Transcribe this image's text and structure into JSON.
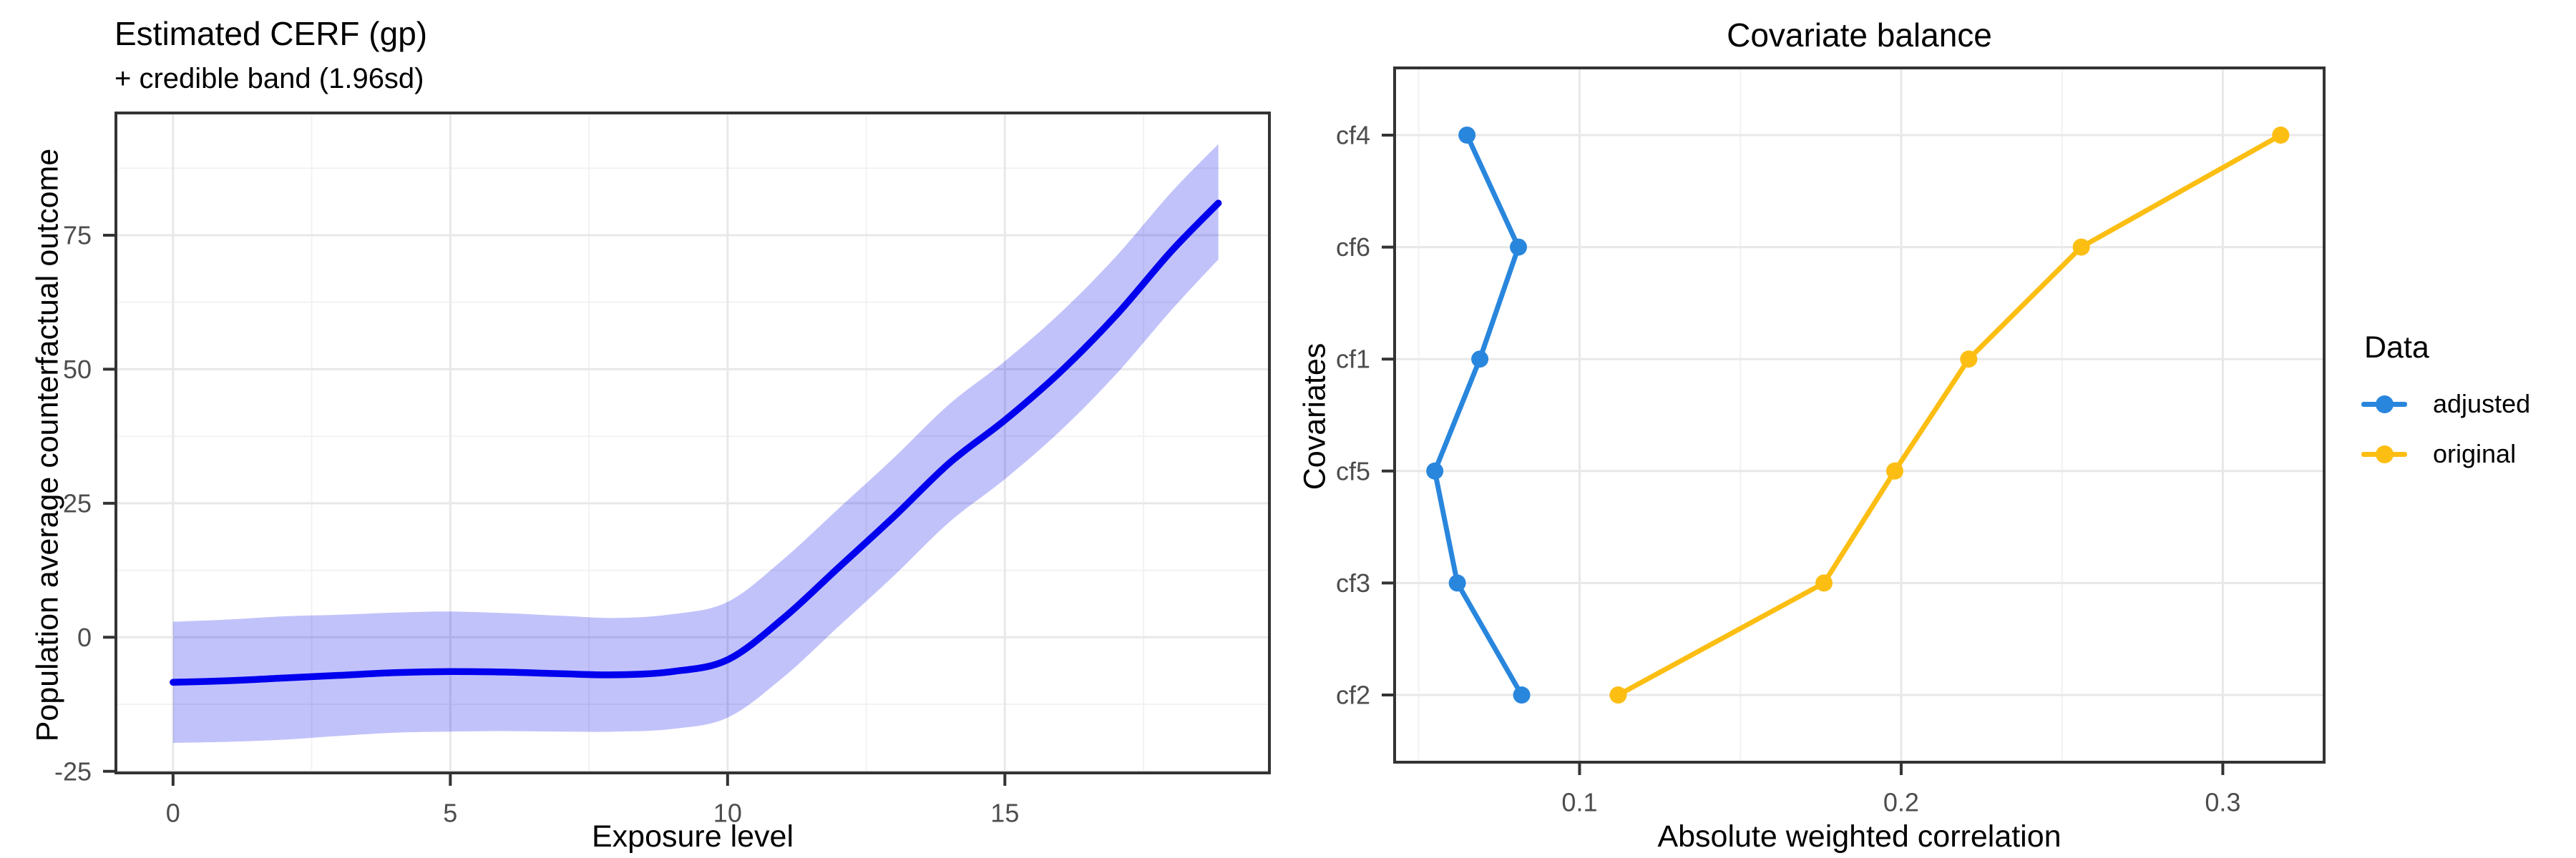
{
  "chart_data": [
    {
      "id": "cerf",
      "type": "line",
      "title": "Estimated CERF (gp)",
      "subtitle": "+ credible band (1.96sd)",
      "xlabel": "Exposure level",
      "ylabel": "Population average counterfactual outcome",
      "xlim": [
        -1.03,
        19.77
      ],
      "ylim": [
        -25.3,
        97.8
      ],
      "x_ticks": [
        {
          "v": 0,
          "label": "0"
        },
        {
          "v": 5,
          "label": "5"
        },
        {
          "v": 10,
          "label": "10"
        },
        {
          "v": 15,
          "label": "15"
        }
      ],
      "y_ticks": [
        {
          "v": -25,
          "label": "-25"
        },
        {
          "v": 0,
          "label": "0"
        },
        {
          "v": 25,
          "label": "25"
        },
        {
          "v": 50,
          "label": "50"
        },
        {
          "v": 75,
          "label": "75"
        }
      ],
      "x_minor": [
        2.5,
        7.5,
        12.5,
        17.5
      ],
      "y_minor": [
        -12.5,
        12.5,
        37.5,
        62.5,
        87.5
      ],
      "x": [
        0,
        1,
        2,
        3,
        4,
        5,
        6,
        7,
        8,
        9,
        10,
        11,
        12,
        13,
        14,
        15,
        16,
        17,
        18,
        18.85
      ],
      "line": [
        -8.4,
        -8.1,
        -7.6,
        -7.1,
        -6.6,
        -6.4,
        -6.5,
        -6.8,
        -7.0,
        -6.4,
        -4.2,
        3.5,
        13.0,
        22.5,
        32.5,
        40.5,
        49.5,
        60.0,
        72.0,
        81.0
      ],
      "band_upper": [
        2.9,
        3.3,
        3.9,
        4.2,
        4.6,
        4.8,
        4.5,
        4.0,
        3.6,
        4.3,
        6.6,
        14.5,
        24.0,
        33.5,
        43.5,
        51.5,
        60.5,
        71.0,
        83.0,
        92.0
      ],
      "band_lower": [
        -19.7,
        -19.5,
        -19.1,
        -18.4,
        -17.8,
        -17.6,
        -17.5,
        -17.6,
        -17.6,
        -17.1,
        -15.0,
        -7.5,
        2.0,
        11.5,
        21.5,
        29.5,
        38.5,
        49.0,
        61.0,
        70.5
      ],
      "colors": {
        "line": "#0101EE",
        "band": "rgba(1,1,238,0.24)"
      },
      "grid": true,
      "legend_position": "none"
    },
    {
      "id": "balance",
      "type": "line",
      "title": "Covariate balance",
      "xlabel": "Absolute weighted correlation",
      "ylabel": "Covariates",
      "categories_top_to_bottom": [
        "cf4",
        "cf6",
        "cf1",
        "cf5",
        "cf3",
        "cf2"
      ],
      "xlim": [
        0.0425,
        0.3315
      ],
      "x_ticks": [
        {
          "v": 0.1,
          "label": "0.1"
        },
        {
          "v": 0.2,
          "label": "0.2"
        },
        {
          "v": 0.3,
          "label": "0.3"
        }
      ],
      "x_minor": [
        0.05,
        0.15,
        0.25
      ],
      "series": [
        {
          "name": "adjusted",
          "color": "#2986DD",
          "values": [
            0.065,
            0.081,
            0.069,
            0.055,
            0.062,
            0.082
          ]
        },
        {
          "name": "original",
          "color": "#FCBE12",
          "values": [
            0.318,
            0.256,
            0.221,
            0.198,
            0.176,
            0.112
          ]
        }
      ],
      "legend": {
        "title": "Data",
        "items": [
          "adjusted",
          "original"
        ]
      },
      "legend_position": "right",
      "grid": true
    }
  ],
  "theme": {
    "panel_border": "#333333",
    "grid_major": "#E8E8E8",
    "grid_minor": "#F2F2F2",
    "tick_stroke": "#333333",
    "tick_text": "#4D4D4D",
    "background": "#FFFFFF"
  }
}
